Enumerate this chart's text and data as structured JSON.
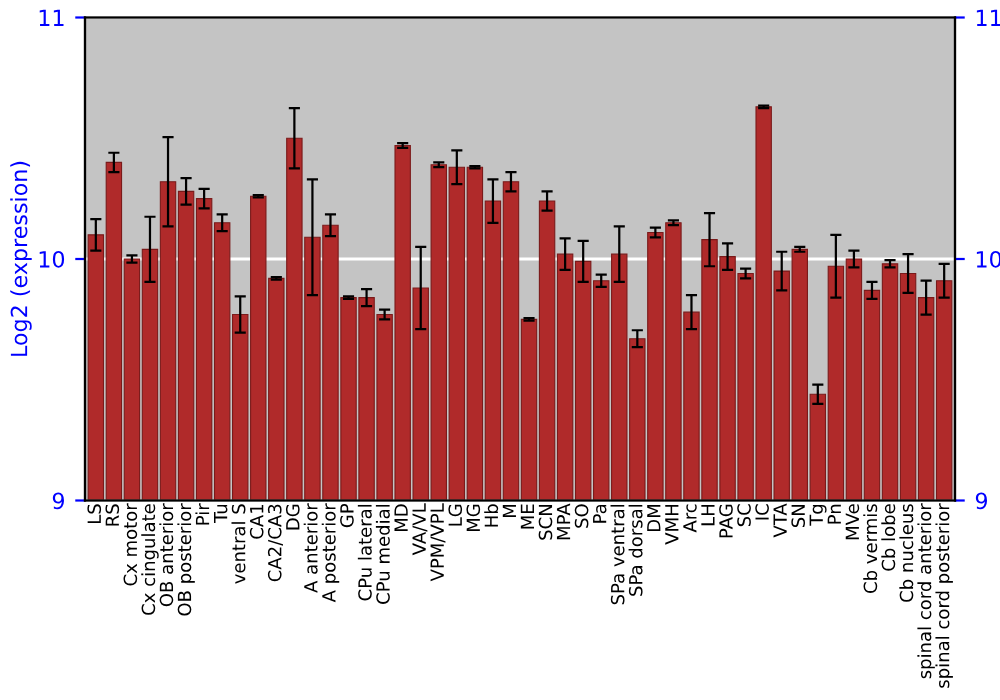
{
  "chart_data": {
    "type": "bar",
    "ylabel": "Log2 (expression)",
    "categories": [
      "LS",
      "RS",
      "Cx motor",
      "Cx cingulate",
      "OB anterior",
      "OB posterior",
      "Pir",
      "Tu",
      "ventral S",
      "CA1",
      "CA2/CA3",
      "DG",
      "A anterior",
      "A posterior",
      "GP",
      "CPu lateral",
      "CPu medial",
      "MD",
      "VA/VL",
      "VPM/VPL",
      "LG",
      "MG",
      "Hb",
      "M",
      "ME",
      "SCN",
      "MPA",
      "SO",
      "Pa",
      "SPa ventral",
      "SPa dorsal",
      "DM",
      "VMH",
      "Arc",
      "LH",
      "PAG",
      "SC",
      "IC",
      "VTA",
      "SN",
      "Tg",
      "Pn",
      "MVe",
      "Cb vermis",
      "Cb lobe",
      "Cb nucleus",
      "spinal cord anterior",
      "spinal cord posterior"
    ],
    "values": [
      10.1,
      10.4,
      10.0,
      10.04,
      10.32,
      10.28,
      10.25,
      10.15,
      9.77,
      10.26,
      9.92,
      10.5,
      10.09,
      10.14,
      9.84,
      9.84,
      9.77,
      10.47,
      9.88,
      10.39,
      10.38,
      10.38,
      10.24,
      10.32,
      9.75,
      10.24,
      10.02,
      9.99,
      9.91,
      10.02,
      9.67,
      10.11,
      10.15,
      9.78,
      10.08,
      10.01,
      9.94,
      10.63,
      9.95,
      10.04,
      9.44,
      9.97,
      10.0,
      9.87,
      9.98,
      9.94,
      9.84,
      9.91
    ],
    "errors": [
      0.065,
      0.04,
      0.015,
      0.135,
      0.185,
      0.055,
      0.04,
      0.035,
      0.075,
      0.005,
      0.005,
      0.125,
      0.24,
      0.045,
      0.005,
      0.035,
      0.02,
      0.01,
      0.17,
      0.01,
      0.07,
      0.005,
      0.09,
      0.04,
      0.005,
      0.04,
      0.065,
      0.085,
      0.025,
      0.115,
      0.035,
      0.02,
      0.01,
      0.07,
      0.11,
      0.055,
      0.02,
      0.005,
      0.08,
      0.01,
      0.04,
      0.13,
      0.035,
      0.035,
      0.015,
      0.08,
      0.07,
      0.07
    ],
    "color": "#b02a2a",
    "ylim": [
      9,
      11
    ],
    "yticks": [
      9,
      10,
      11
    ],
    "y2lim": [
      9,
      11
    ],
    "y2ticks": [
      9,
      10,
      11
    ],
    "grid": "y"
  }
}
